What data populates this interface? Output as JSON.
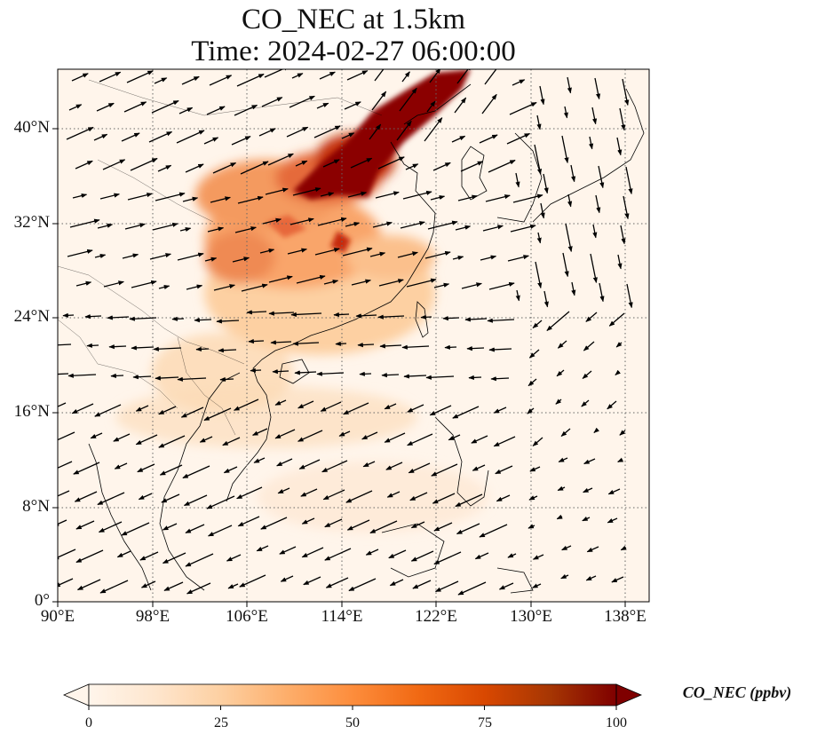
{
  "title_line1": "CO_NEC at 1.5km",
  "title_line2": "Time: 2024-02-27 06:00:00",
  "lat_ticks": [
    "0°",
    "8°N",
    "16°N",
    "24°N",
    "32°N",
    "40°N"
  ],
  "lon_ticks": [
    "90°E",
    "98°E",
    "106°E",
    "114°E",
    "122°E",
    "130°E",
    "138°E"
  ],
  "colorbar": {
    "label": "CO_NEC (ppbv)",
    "ticks": [
      "0",
      "25",
      "50",
      "75",
      "100"
    ],
    "min": 0,
    "max": 100,
    "extend": "both",
    "colormap": [
      "#fff5eb",
      "#fee6ce",
      "#fdd0a2",
      "#fdae6b",
      "#fd8d3c",
      "#f16913",
      "#d94801",
      "#a63603",
      "#7f0000"
    ]
  },
  "map": {
    "lon_range": [
      90,
      140
    ],
    "lat_range": [
      0,
      45
    ],
    "projection": "PlateCarree",
    "gridlines": "dotted"
  }
}
